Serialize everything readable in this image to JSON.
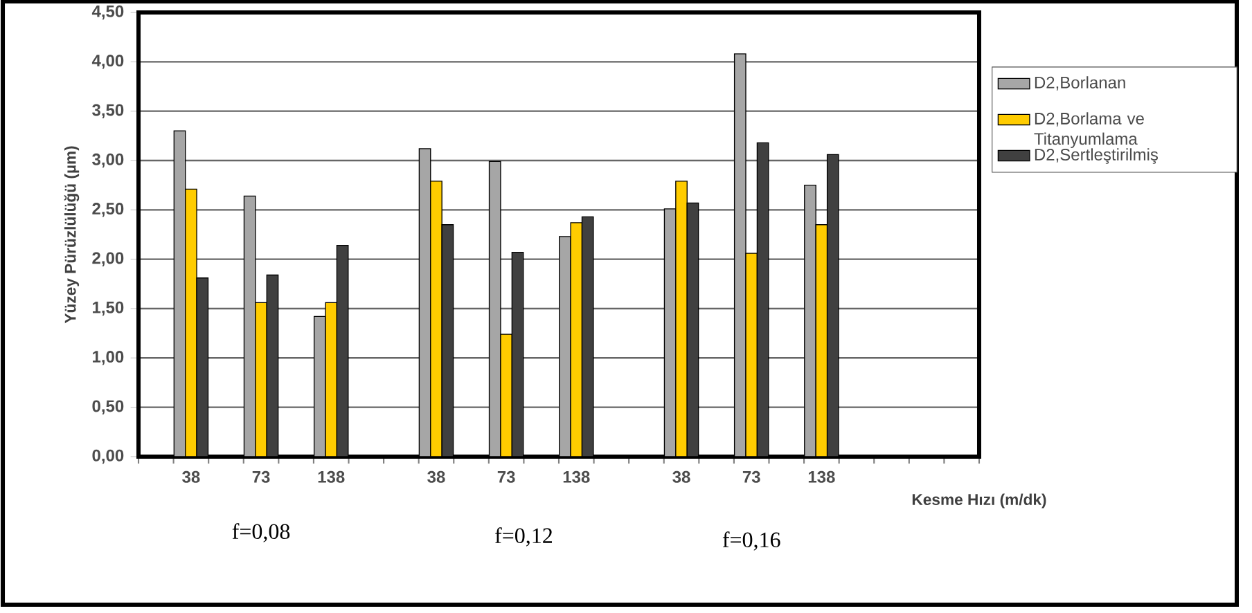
{
  "chart_data": {
    "type": "bar",
    "ylabel": "Yüzey Pürüzlülüğü (µm)",
    "xlabel": "Kesme Hızı (m/dk)",
    "categories": [
      null,
      "38",
      null,
      "73",
      null,
      "138",
      null,
      null,
      "38",
      null,
      "73",
      null,
      "138",
      null,
      null,
      "38",
      null,
      "73",
      null,
      "138",
      null,
      null,
      null,
      null
    ],
    "series": [
      {
        "name": "D2,Borlanan",
        "color": "#a6a6a6",
        "values": [
          null,
          3.3,
          null,
          2.64,
          null,
          1.42,
          null,
          null,
          3.12,
          null,
          2.99,
          null,
          2.23,
          null,
          null,
          2.51,
          null,
          4.08,
          null,
          2.75,
          null,
          null,
          null,
          null
        ]
      },
      {
        "name": "D2,Borlama ve Titanyumlama",
        "color": "#ffcc00",
        "values": [
          null,
          2.71,
          null,
          1.56,
          null,
          1.56,
          null,
          null,
          2.79,
          null,
          1.24,
          null,
          2.37,
          null,
          null,
          2.79,
          null,
          2.06,
          null,
          2.35,
          null,
          null,
          null,
          null
        ]
      },
      {
        "name": "D2,Sertleştirilmiş",
        "color": "#404040",
        "values": [
          null,
          1.81,
          null,
          1.84,
          null,
          2.14,
          null,
          null,
          2.35,
          null,
          2.07,
          null,
          2.43,
          null,
          null,
          2.57,
          null,
          3.18,
          null,
          3.06,
          null,
          null,
          null,
          null
        ]
      }
    ],
    "ylim": [
      0,
      4.5
    ],
    "yticks": [
      {
        "value": 0,
        "label": "0,00"
      },
      {
        "value": 0.5,
        "label": "0,50"
      },
      {
        "value": 1,
        "label": "1,00"
      },
      {
        "value": 1.5,
        "label": "1,50"
      },
      {
        "value": 2,
        "label": "2,00"
      },
      {
        "value": 2.5,
        "label": "2,50"
      },
      {
        "value": 3,
        "label": "3,00"
      },
      {
        "value": 3.5,
        "label": "3,50"
      },
      {
        "value": 4,
        "label": "4,00"
      },
      {
        "value": 4.5,
        "label": "4,50"
      }
    ],
    "grid": "y",
    "legend": "right",
    "annotations": [
      "f=0,08",
      "f=0,12",
      "f=0,16"
    ]
  }
}
